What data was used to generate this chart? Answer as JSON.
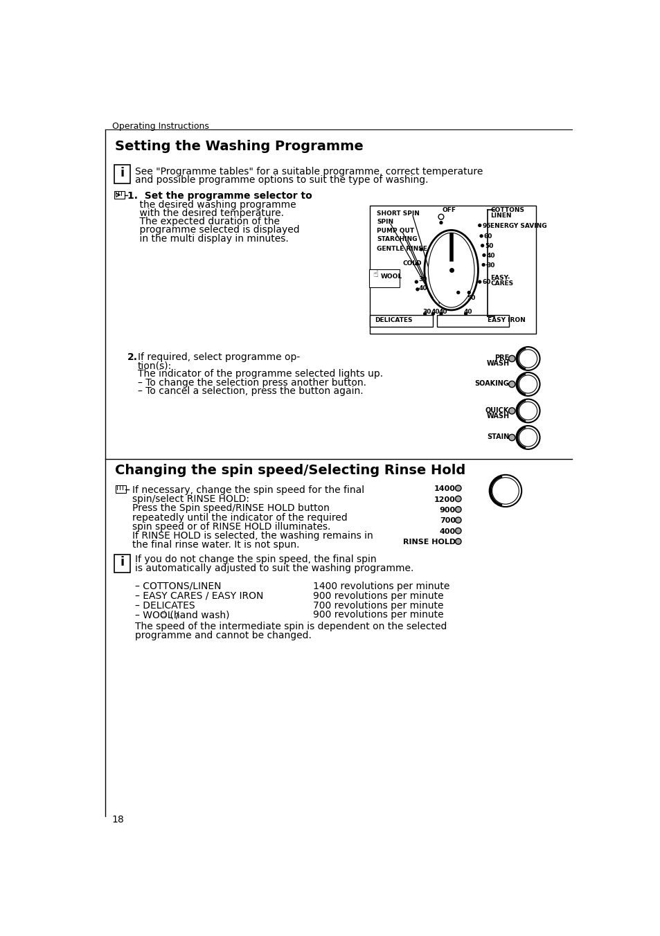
{
  "page_header": "Operating Instructions",
  "section1_title": "Setting the Washing Programme",
  "info_box1_line1": "See \"Programme tables\" for a suitable programme, correct temperature",
  "info_box1_line2": "and possible programme options to suit the type of washing.",
  "step1_lines": [
    "1.  Set the programme selector to",
    "    the desired washing programme",
    "    with the desired temperature.",
    "    The expected duration of the",
    "    programme selected is displayed",
    "    in the multi display in minutes."
  ],
  "step2_bold": "2.",
  "step2_lines": [
    "If required, select programme op-",
    "tion(s):",
    "The indicator of the programme selected lights up.",
    "– To change the selection press another button.",
    "– To cancel a selection, press the button again."
  ],
  "section2_title": "Changing the spin speed/Selecting Rinse Hold",
  "spin_text_lines": [
    "If necessary, change the spin speed for the final",
    "spin/select RINSE HOLD:",
    "Press the Spin speed/RINSE HOLD button",
    "repeatedly until the indicator of the required",
    "spin speed or of RINSE HOLD illuminates.",
    "If RINSE HOLD is selected, the washing remains in",
    "the final rinse water. It is not spun."
  ],
  "spin_speeds": [
    "1400",
    "1200",
    "900",
    "700",
    "400",
    "RINSE HOLD"
  ],
  "info_box2_lines": [
    "If you do not change the spin speed, the final spin",
    "is automatically adjusted to suit the washing programme."
  ],
  "bullet_left": [
    "– COTTONS/LINEN",
    "– EASY CARES / EASY IRON",
    "– DELICATES",
    "– WOOL /"
  ],
  "bullet_right": [
    "1400 revolutions per minute",
    "900 revolutions per minute",
    "700 revolutions per minute",
    "900 revolutions per minute"
  ],
  "bullet_suffix": [
    "",
    "",
    "",
    " (hand wash)"
  ],
  "final_text_lines": [
    "The speed of the intermediate spin is dependent on the selected",
    "programme and cannot be changed."
  ],
  "page_number": "18",
  "bg_color": "#ffffff"
}
